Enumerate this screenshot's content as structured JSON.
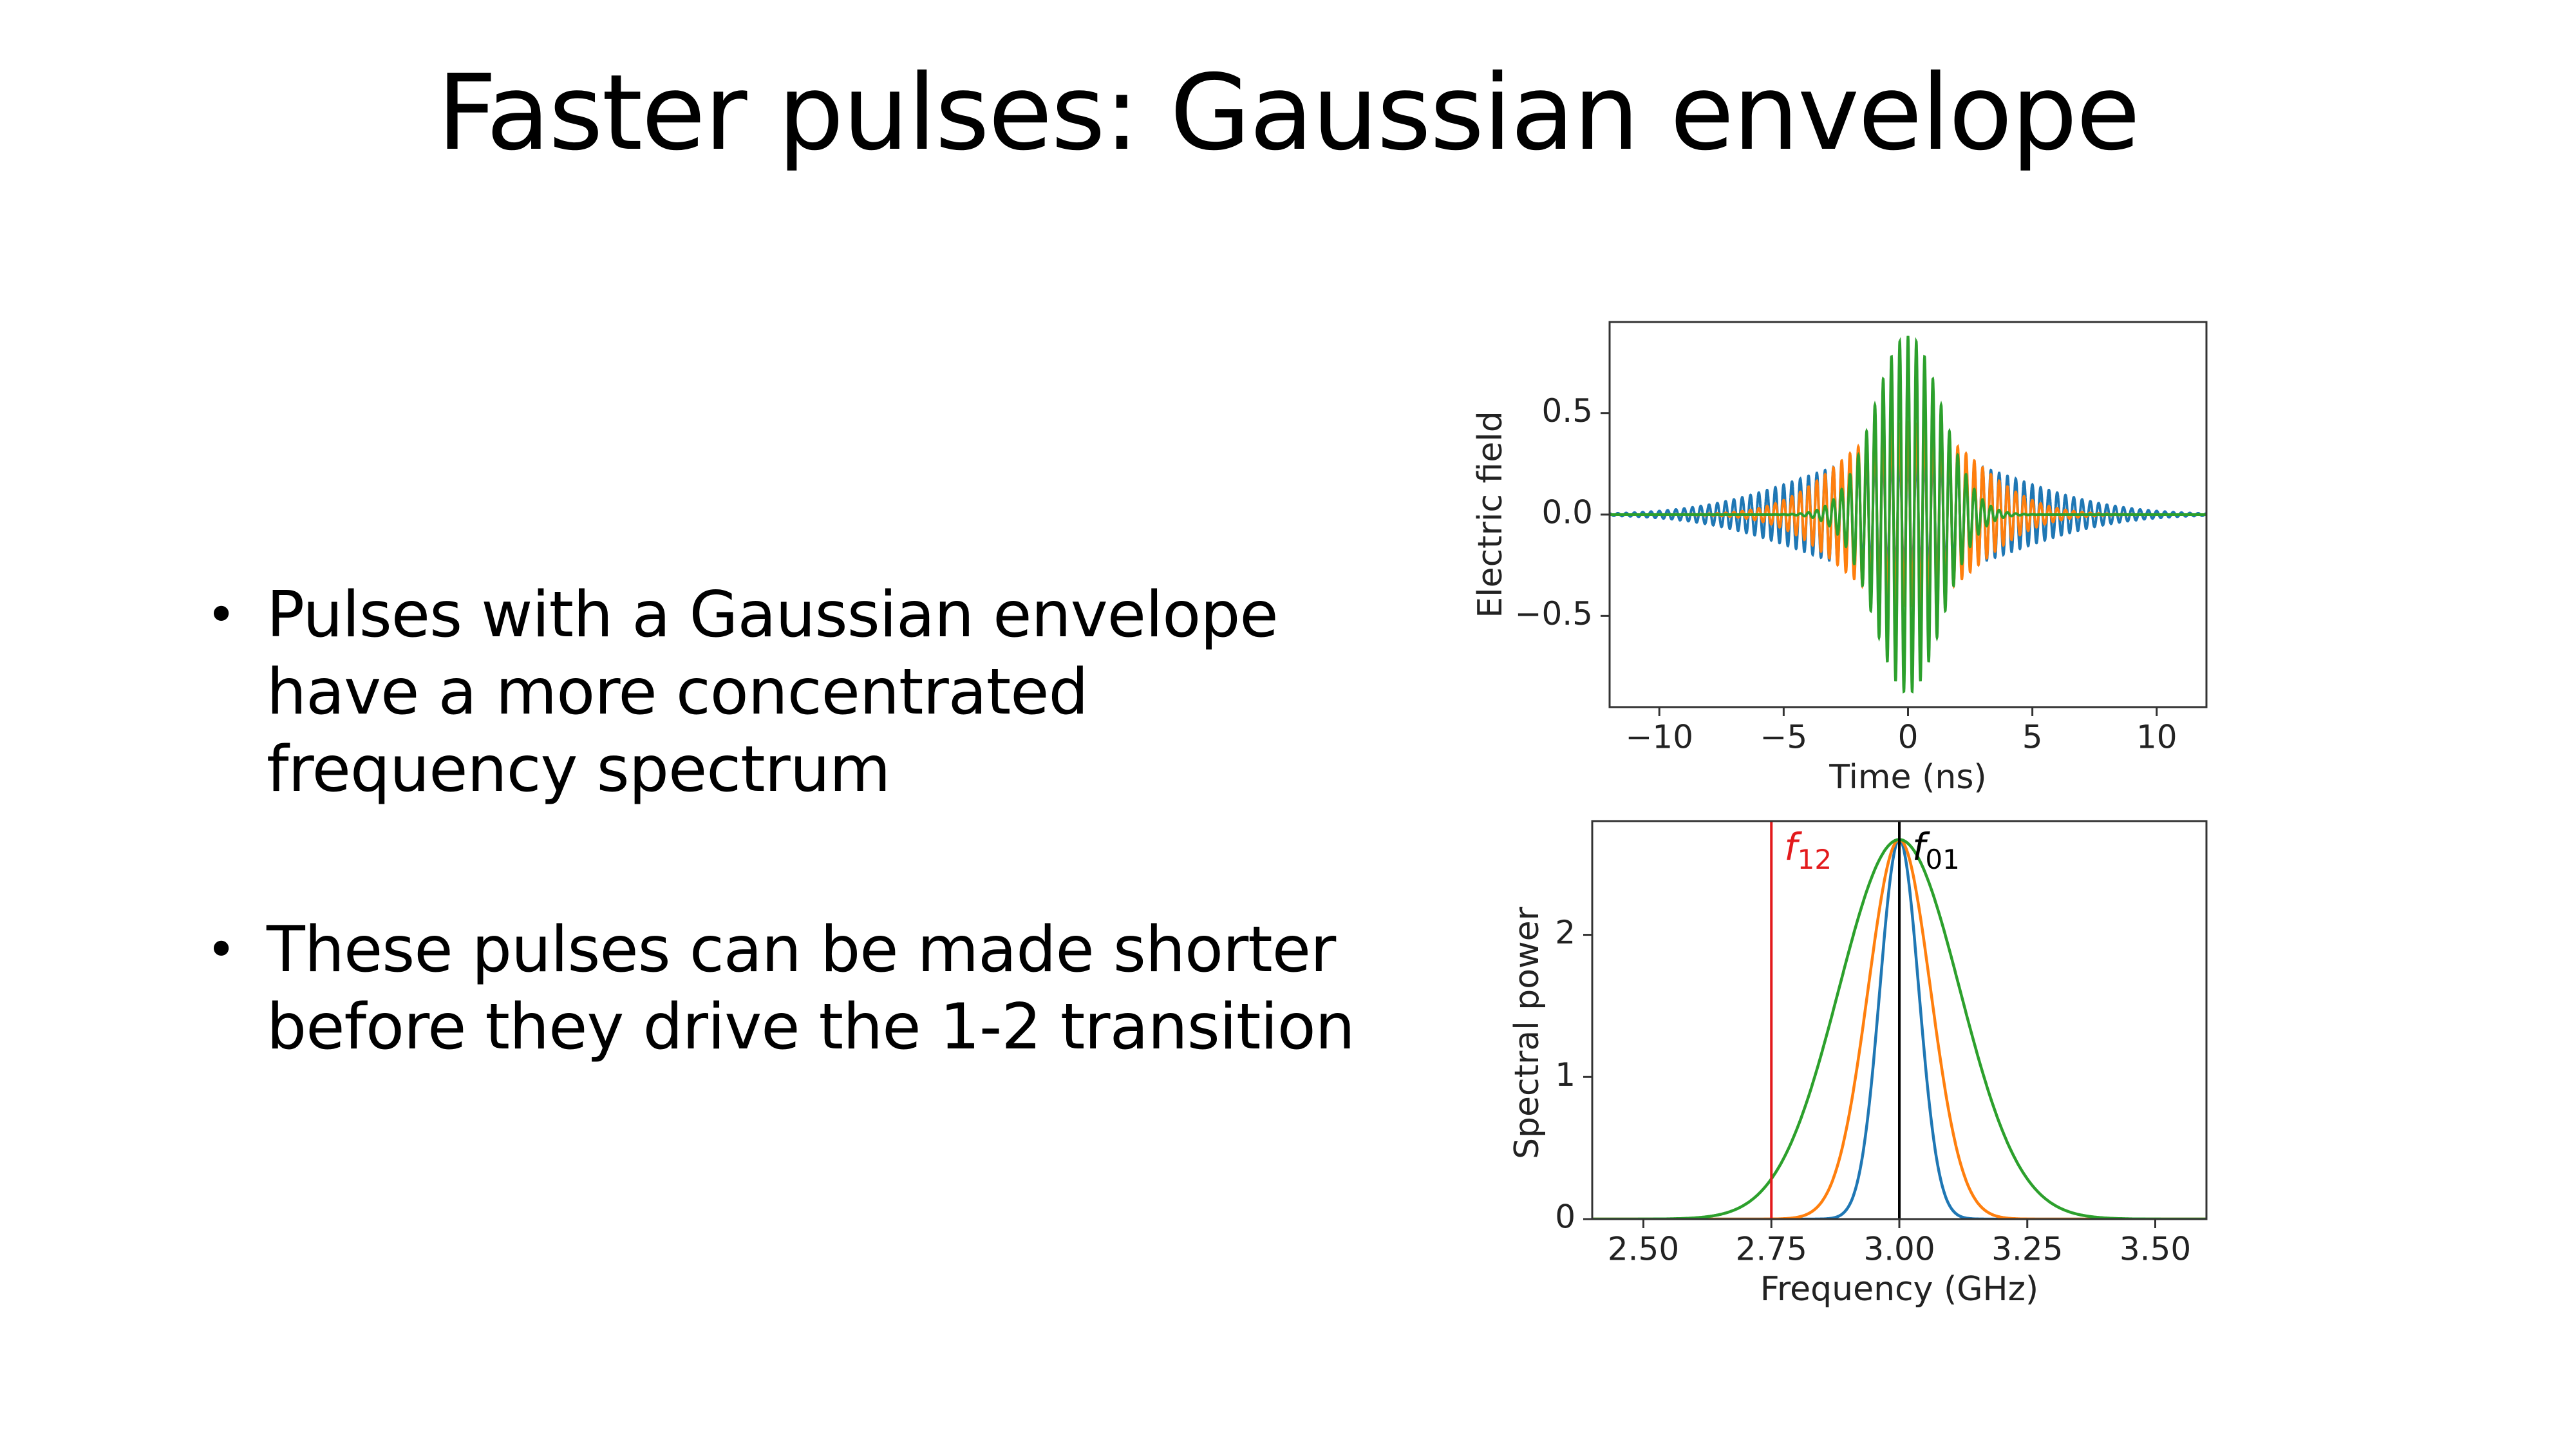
{
  "slide": {
    "title": "Faster pulses: Gaussian envelope",
    "bullets": [
      {
        "lines": [
          "Pulses with a Gaussian envelope",
          "have a more concentrated",
          "frequency spectrum"
        ]
      },
      {
        "lines": [
          "These pulses can be made shorter",
          "before they drive the 1-2 transition"
        ]
      }
    ]
  },
  "chart_data": [
    {
      "type": "line",
      "xlabel": "Time (ns)",
      "ylabel": "Electric field",
      "xlim": [
        -12.0,
        12.0
      ],
      "ylim": [
        -0.95,
        0.95
      ],
      "xticks": [
        -10,
        -5,
        0,
        5,
        10
      ],
      "xtick_labels": [
        "−10",
        "−5",
        "0",
        "5",
        "10"
      ],
      "yticks": [
        0.5,
        0.0,
        -0.5
      ],
      "ytick_labels": [
        "0.5",
        "0.0",
        "−0.5"
      ],
      "carrier_frequency_ghz": 3.0,
      "series": [
        {
          "color": "#1f77b4",
          "amplitude": 0.3,
          "sigma_ns": 4.2
        },
        {
          "color": "#ff7f0e",
          "amplitude": 0.45,
          "sigma_ns": 2.6
        },
        {
          "color": "#2ca02c",
          "amplitude": 0.88,
          "sigma_ns": 1.35
        }
      ]
    },
    {
      "type": "line",
      "xlabel": "Frequency (GHz)",
      "ylabel": "Spectral power",
      "xlim": [
        2.4,
        3.6
      ],
      "ylim": [
        0,
        2.8
      ],
      "xticks": [
        2.5,
        2.75,
        3.0,
        3.25,
        3.5
      ],
      "xtick_labels": [
        "2.50",
        "2.75",
        "3.00",
        "3.25",
        "3.50"
      ],
      "yticks": [
        0,
        1,
        2
      ],
      "ytick_labels": [
        "0",
        "1",
        "2"
      ],
      "series": [
        {
          "color": "#1f77b4",
          "center": 3.0,
          "peak": 2.67,
          "sigma": 0.038
        },
        {
          "color": "#ff7f0e",
          "center": 3.0,
          "peak": 2.67,
          "sigma": 0.061
        },
        {
          "color": "#2ca02c",
          "center": 3.0,
          "peak": 2.67,
          "sigma": 0.118
        }
      ],
      "vlines": [
        {
          "x": 2.75,
          "color": "#e31a1c",
          "label_main": "f",
          "label_sub": "12"
        },
        {
          "x": 3.0,
          "color": "#000000",
          "label_main": "f",
          "label_sub": "01"
        }
      ]
    }
  ]
}
